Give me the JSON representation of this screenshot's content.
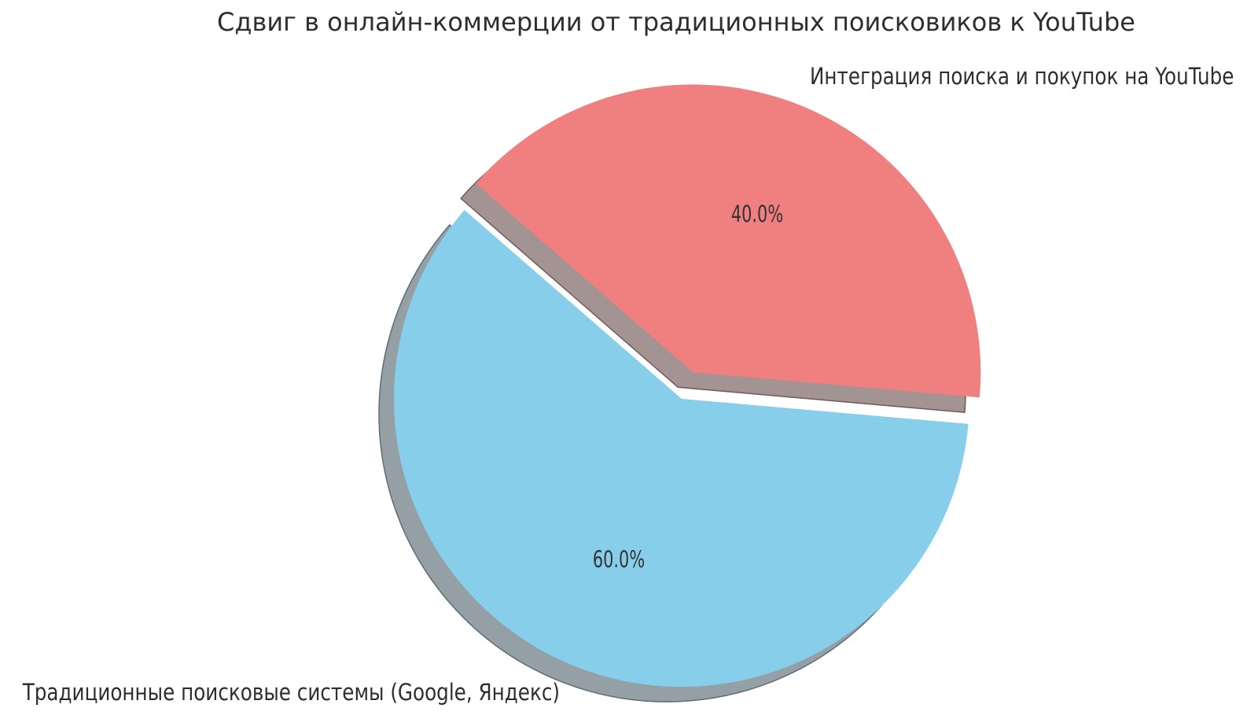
{
  "title": "Сдвиг в онлайн-коммерции от традиционных поисковиков к YouTube",
  "chart_data": {
    "type": "pie",
    "title": "Сдвиг в онлайн-коммерции от традиционных поисковиков к YouTube",
    "legend": false,
    "shadow": true,
    "startangle": -5,
    "counterclock": true,
    "pctdistance": 0.6,
    "labeldistance": 1.1,
    "text_color": "#2e2e2e",
    "background": "#ffffff",
    "slices": [
      {
        "label": "Интеграция поиска и покупок на YouTube",
        "value": 40.0,
        "pct_label": "40.0%",
        "color": "#F08080",
        "explode": 0.1,
        "shadow_fill": "#a49393",
        "shadow_stroke": "#6f5b5b"
      },
      {
        "label": "Традиционные поисковые системы (Google, Яндекс)",
        "value": 60.0,
        "pct_label": "60.0%",
        "color": "#87CEEB",
        "explode": 0.0,
        "shadow_fill": "#94a0a5",
        "shadow_stroke": "#5f6e74"
      }
    ]
  }
}
